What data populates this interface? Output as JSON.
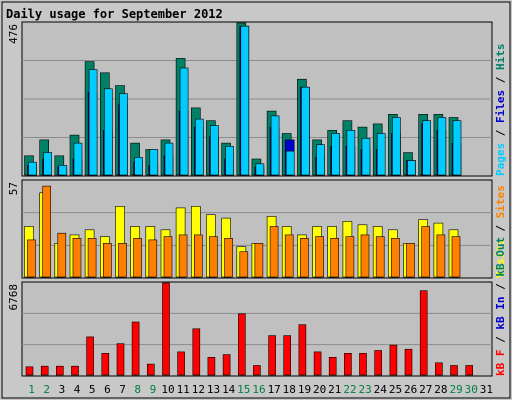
{
  "chart_data": {
    "type": "bar",
    "title": "Daily usage for September 2012",
    "days": [
      "1",
      "2",
      "3",
      "4",
      "5",
      "6",
      "7",
      "8",
      "9",
      "10",
      "11",
      "12",
      "13",
      "14",
      "15",
      "16",
      "17",
      "18",
      "19",
      "20",
      "21",
      "22",
      "23",
      "24",
      "25",
      "26",
      "27",
      "28",
      "29",
      "30",
      "31"
    ],
    "weekend_days": [
      "1",
      "2",
      "8",
      "9",
      "15",
      "16",
      "22",
      "23",
      "29",
      "30"
    ],
    "colors": {
      "title": "#0000cc",
      "panel_bg": "#c0c0c0",
      "grid": "#8c8c8c",
      "pages": "#00ccff",
      "files": "#0000cc",
      "hits": "#008066",
      "visits": "#ffff00",
      "sites": "#ff8000",
      "kb_in": "#0000cc",
      "kb_out": "#008066",
      "kb_f": "#ff0000",
      "weekday": "#000000",
      "weekend": "#008040"
    },
    "panels": [
      {
        "name": "hits-files-pages",
        "ymax_label": "476",
        "ymax": 476,
        "legend": [
          {
            "text": "Pages",
            "color": "#00ccff"
          },
          {
            "text": " / ",
            "color": "#000000"
          },
          {
            "text": "Files",
            "color": "#0000cc"
          },
          {
            "text": " / ",
            "color": "#000000"
          },
          {
            "text": "Hits",
            "color": "#008066"
          }
        ],
        "series": [
          {
            "name": "Hits",
            "values": [
              60,
              110,
              60,
              125,
              355,
              320,
              280,
              100,
              80,
              110,
              365,
              210,
              170,
              100,
              476,
              50,
              200,
              130,
              300,
              110,
              140,
              170,
              150,
              160,
              190,
              70,
              190,
              190,
              180,
              0,
              0
            ]
          },
          {
            "name": "Files",
            "values": [
              30,
              50,
              25,
              50,
              260,
              140,
              220,
              40,
              30,
              60,
              200,
              150,
              120,
              50,
              466,
              25,
              150,
              110,
              275,
              55,
              90,
              90,
              80,
              80,
              130,
              45,
              160,
              140,
              100,
              0,
              0
            ]
          },
          {
            "name": "Pages",
            "values": [
              40,
              70,
              30,
              100,
              330,
              270,
              255,
              55,
              80,
              100,
              335,
              175,
              155,
              90,
              466,
              35,
              185,
              75,
              275,
              95,
              130,
              140,
              115,
              130,
              180,
              45,
              170,
              180,
              170,
              0,
              0
            ]
          }
        ]
      },
      {
        "name": "visits-sites",
        "ymax_label": "57",
        "ymax": 57,
        "legend": [
          {
            "text": "Visits",
            "color": "#ffff00"
          },
          {
            "text": " / ",
            "color": "#000000"
          },
          {
            "text": "Sites",
            "color": "#ff8000"
          }
        ],
        "series": [
          {
            "name": "Visits",
            "values": [
              30,
              50,
              20,
              25,
              28,
              24,
              42,
              30,
              30,
              28,
              41,
              42,
              37,
              35,
              18,
              20,
              36,
              30,
              25,
              30,
              30,
              33,
              31,
              30,
              28,
              20,
              34,
              32,
              28,
              0,
              0
            ]
          },
          {
            "name": "Sites",
            "values": [
              22,
              54,
              26,
              23,
              23,
              20,
              20,
              23,
              22,
              24,
              25,
              25,
              24,
              23,
              15,
              20,
              30,
              25,
              23,
              24,
              23,
              24,
              25,
              24,
              23,
              20,
              30,
              25,
              24,
              0,
              0
            ]
          }
        ]
      },
      {
        "name": "kb",
        "ymax_label": "6768",
        "ymax": 6768,
        "legend": [
          {
            "text": "kB F",
            "color": "#ff0000"
          },
          {
            "text": " / ",
            "color": "#000000"
          },
          {
            "text": "kB In",
            "color": "#0000cc"
          },
          {
            "text": " / ",
            "color": "#000000"
          },
          {
            "text": "kB Out",
            "color": "#008066"
          }
        ],
        "series": [
          {
            "name": "kB F",
            "values": [
              600,
              650,
              650,
              650,
              2800,
              1600,
              2300,
              3900,
              800,
              6768,
              1700,
              3400,
              1300,
              1500,
              4500,
              700,
              2900,
              2900,
              3700,
              1700,
              1300,
              1600,
              1600,
              1800,
              2200,
              1900,
              6200,
              900,
              700,
              700,
              0
            ]
          }
        ]
      }
    ]
  }
}
